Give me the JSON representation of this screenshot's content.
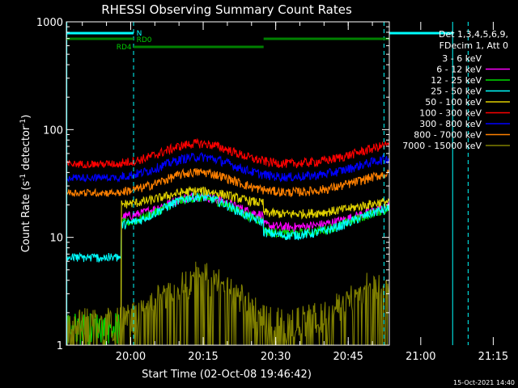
{
  "chart_data": {
    "type": "line",
    "title": "RHESSI Observing Summary Count Rates",
    "xlabel": "Start Time (02-Oct-08 19:46:42)",
    "ylabel_main": "Count Rate (s",
    "ylabel_sup1": "-1",
    "ylabel_mid": " detector",
    "ylabel_sup2": "-1",
    "ylabel_end": ")",
    "y_scale": "log",
    "ylim": [
      1,
      1000
    ],
    "y_ticks": [
      {
        "value": 1,
        "label": "1"
      },
      {
        "value": 10,
        "label": "10"
      },
      {
        "value": 100,
        "label": "100"
      },
      {
        "value": 1000,
        "label": "1000"
      }
    ],
    "xlim_min": [
      -13.3,
      53.5
    ],
    "x_ticks": [
      {
        "value": 0,
        "label": "20:00"
      },
      {
        "value": 15,
        "label": "20:15"
      },
      {
        "value": 30,
        "label": "20:30"
      },
      {
        "value": 45,
        "label": "20:45"
      },
      {
        "value": 60,
        "label": "21:00"
      },
      {
        "value": 75,
        "label": "21:15"
      }
    ],
    "x_ticks_note": "x values are minutes after 20:00 UT",
    "legend_header": [
      "Det 1,3,4,5,6,9,",
      "FDecim 1, Att 0"
    ],
    "legend_position": "top-right",
    "series": [
      {
        "name": "3 - 6 keV",
        "color": "#000000",
        "base": 14,
        "amp": 1.8
      },
      {
        "name": "6 - 12 keV",
        "color": "#ff00ff",
        "base": 15,
        "amp": 1.6
      },
      {
        "name": "12 - 25 keV",
        "color": "#00dd00",
        "base": 13,
        "amp": 1.8
      },
      {
        "name": "25 - 50 keV",
        "color": "#00ffff",
        "base": 12.5,
        "amp": 1.9
      },
      {
        "name": "50 - 100 keV",
        "color": "#e0d000",
        "base": 20,
        "amp": 1.35
      },
      {
        "name": "100 - 300 keV",
        "color": "#ff0000",
        "base": 48,
        "amp": 1.55
      },
      {
        "name": "300 - 800 keV",
        "color": "#0000ff",
        "base": 36,
        "amp": 1.55
      },
      {
        "name": "800 - 7000 keV",
        "color": "#ff8000",
        "base": 26,
        "amp": 1.55
      },
      {
        "name": "7000 - 15000 keV",
        "color": "#808000",
        "base": 1,
        "amp": 1
      }
    ],
    "annotations": {
      "N_label": "N",
      "RD0_label": "RD0",
      "RD4_label": "RD4"
    },
    "timestamp": "15-Oct-2021 14:40"
  }
}
